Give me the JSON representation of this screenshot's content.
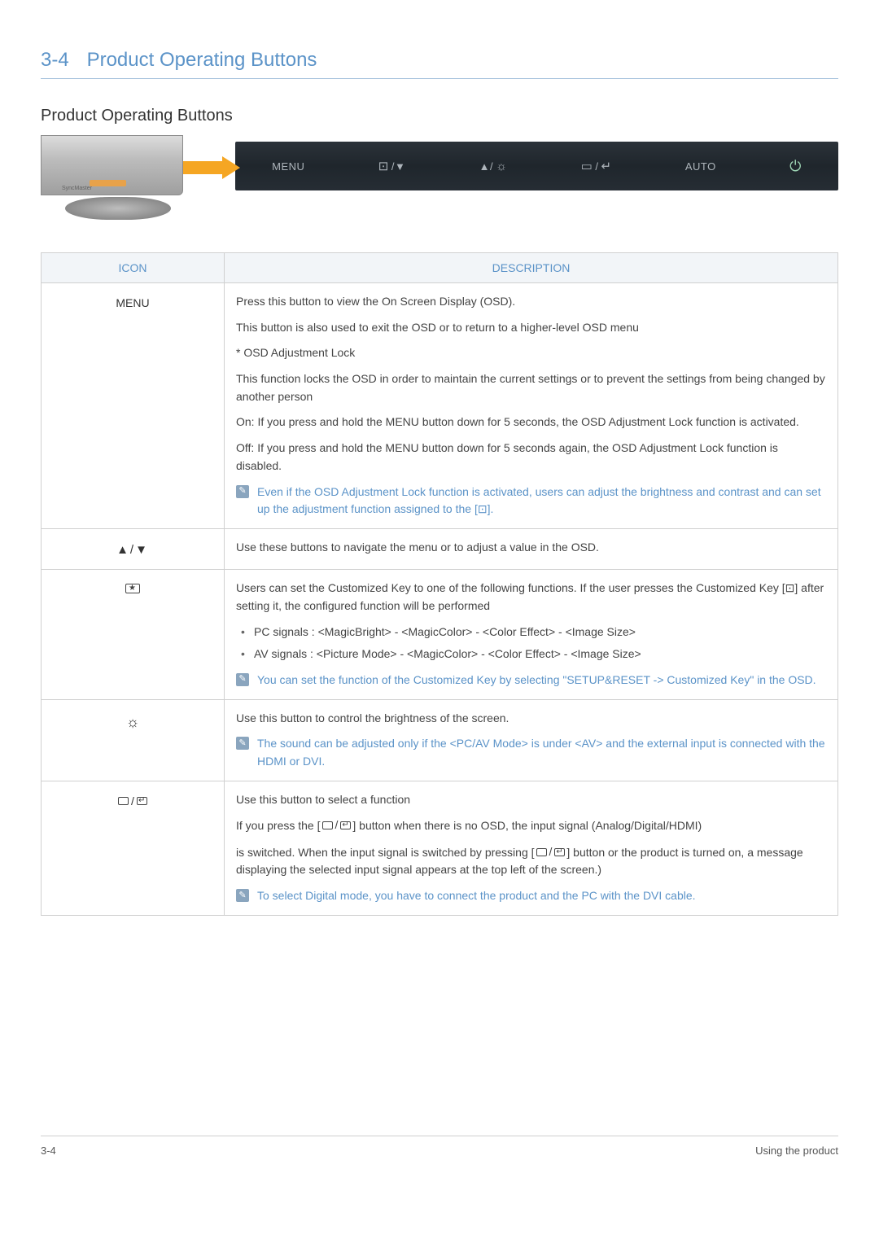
{
  "section": {
    "number": "3-4",
    "title": "Product Operating Buttons"
  },
  "subtitle": "Product Operating Buttons",
  "button_bar": {
    "items": [
      "MENU",
      "⊡/▼",
      "▲/☼",
      "▭/↵",
      "AUTO",
      "⏻"
    ]
  },
  "table": {
    "headers": {
      "icon": "ICON",
      "desc": "DESCRIPTION"
    },
    "rows": [
      {
        "icon_text": "MENU",
        "p1": "Press this button to view the On Screen Display (OSD).",
        "p2": "This button is also used to exit the OSD or to return to a higher-level OSD menu",
        "p3": "* OSD Adjustment Lock",
        "p4": "This function locks the OSD in order to maintain the current settings or to prevent the settings from being changed by another person",
        "p5": "On: If you press and hold the MENU button down for 5 seconds, the OSD Adjustment Lock function is activated.",
        "p6": "Off: If you press and hold the MENU button down for 5 seconds again, the OSD Adjustment Lock function is disabled.",
        "note": "Even if the OSD Adjustment Lock function is activated, users can adjust the brightness and contrast and can set up the adjustment function assigned to the [⊡]."
      },
      {
        "icon_glyph": "▲/▼",
        "p1": "Use these buttons to navigate the menu or to adjust a value in the OSD."
      },
      {
        "icon_custom_key": true,
        "p1": "Users can set the Customized Key to one of the following functions. If the user presses the Customized Key [⊡] after setting it, the configured function will be performed",
        "b1": "PC signals : <MagicBright> - <MagicColor> - <Color Effect> - <Image Size>",
        "b2": "AV signals : <Picture Mode> - <MagicColor> - <Color Effect> - <Image Size>",
        "note": "You can set the function of the Customized Key by selecting \"SETUP&RESET -> Customized Key\" in the OSD."
      },
      {
        "icon_glyph": "☼",
        "p1": "Use this button to control the brightness of the screen.",
        "note": "The sound can be adjusted only if the <PC/AV Mode> is under <AV> and the external input is connected with the HDMI or DVI."
      },
      {
        "icon_source": true,
        "p1": "Use this button to select a function",
        "p2a": "If you press the [",
        "p2b": "] button when there is no OSD, the input signal (Analog/Digital/HDMI)",
        "p3a": "is switched. When the input signal is switched by pressing [",
        "p3b": "] button or the product is turned on, a message displaying the selected input signal appears at the top left of the screen.)",
        "note": "To select Digital mode, you have to connect the product and the PC with the DVI cable."
      }
    ]
  },
  "footer": {
    "left": "3-4",
    "right": "Using the product"
  }
}
